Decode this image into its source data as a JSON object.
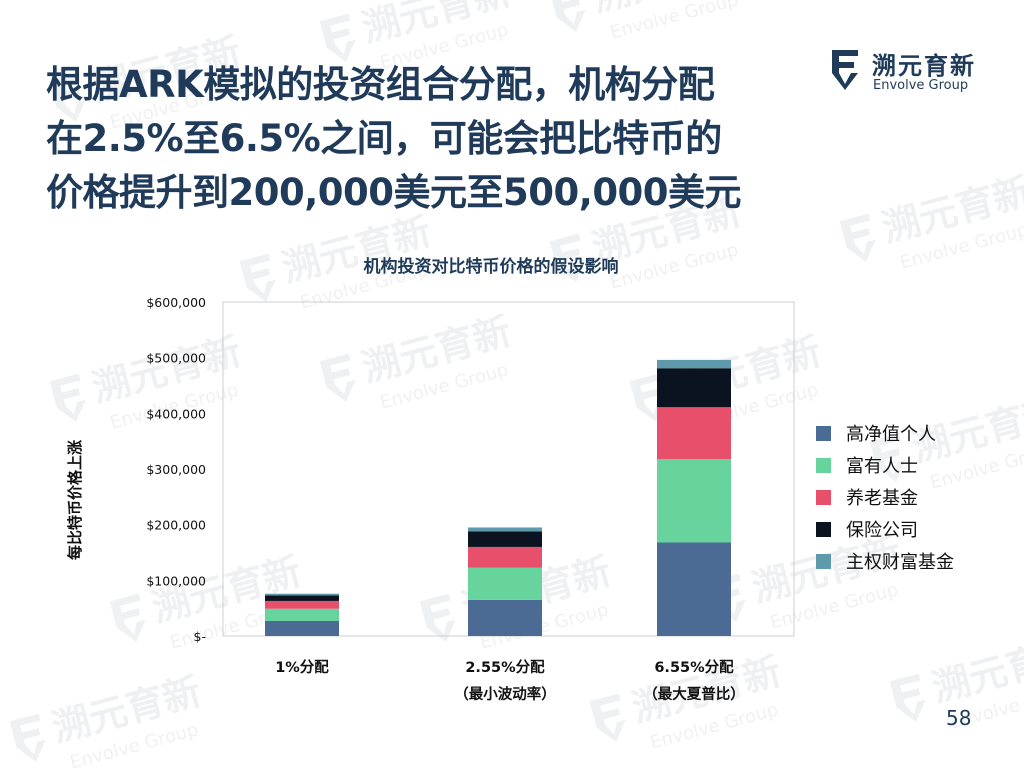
{
  "slide": {
    "title_lines": [
      "根据ARK模拟的投资组合分配，机构分配",
      "在2.5%至6.5%之间，可能会把比特币的",
      "价格提升到200,000美元至500,000美元"
    ],
    "page_number": "58"
  },
  "logo": {
    "name": "溯元育新",
    "sub": "Envolve Group",
    "watermark_name": "溯元育新",
    "watermark_sub": "Envolve Group"
  },
  "colors": {
    "title": "#1f3b59",
    "accent": "#1f3b59"
  },
  "chart_data": {
    "type": "bar",
    "stacked": true,
    "title": "机构投资对比特币价格的假设影响",
    "ylabel": "每比特币价格上涨",
    "xlabel": "",
    "ylim": [
      0,
      600000
    ],
    "yticks": [
      0,
      100000,
      200000,
      300000,
      400000,
      500000,
      600000
    ],
    "ytick_labels": [
      "$-",
      "$100,000",
      "$200,000",
      "$300,000",
      "$400,000",
      "$500,000",
      "$600,000"
    ],
    "grid": false,
    "legend_position": "right",
    "categories": [
      [
        "1%分配"
      ],
      [
        "2.55%分配",
        "（最小波动率）"
      ],
      [
        "6.55%分配",
        "（最大夏普比）"
      ]
    ],
    "series": [
      {
        "name": "高净值个人",
        "color": "#4b6b94",
        "values": [
          27000,
          65000,
          168000
        ]
      },
      {
        "name": "富有人士",
        "color": "#66d49c",
        "values": [
          22000,
          58000,
          150000
        ]
      },
      {
        "name": "养老基金",
        "color": "#e84f6b",
        "values": [
          14000,
          37000,
          93000
        ]
      },
      {
        "name": "保险公司",
        "color": "#0b1220",
        "values": [
          10000,
          28000,
          70000
        ]
      },
      {
        "name": "主权财富基金",
        "color": "#5e9aac",
        "values": [
          3000,
          7000,
          15000
        ]
      }
    ]
  }
}
